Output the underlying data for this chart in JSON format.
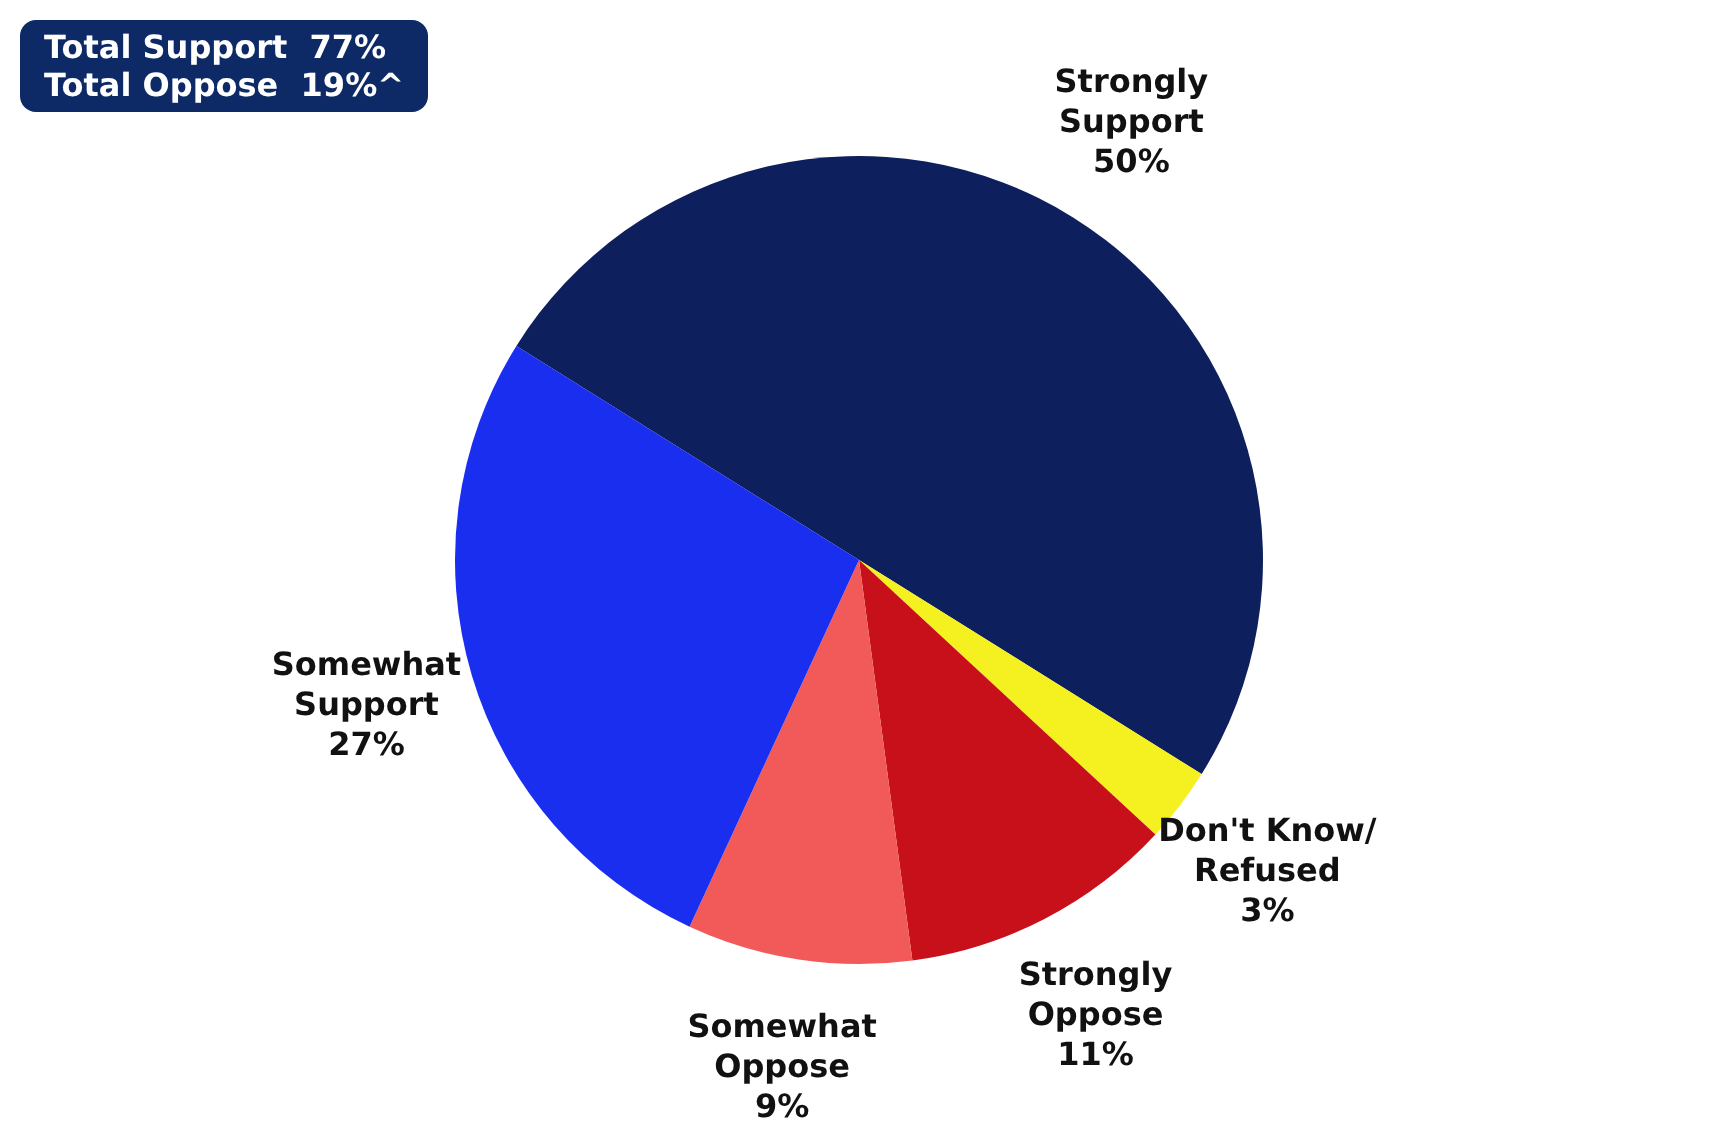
{
  "chart_data": {
    "type": "pie",
    "categories": [
      "Strongly Support",
      "Don't Know/Refused",
      "Strongly Oppose",
      "Somewhat Oppose",
      "Somewhat Support"
    ],
    "values": [
      50,
      3,
      11,
      9,
      27
    ],
    "value_labels": [
      "50%",
      "3%",
      "11%",
      "9%",
      "27%"
    ],
    "colors": [
      "#0d1f5c",
      "#f5f020",
      "#c8101a",
      "#f25a5a",
      "#1a2ef0"
    ],
    "annotations": [
      "Total Support  77%",
      "Total Oppose  19%^"
    ],
    "legend": false
  }
}
